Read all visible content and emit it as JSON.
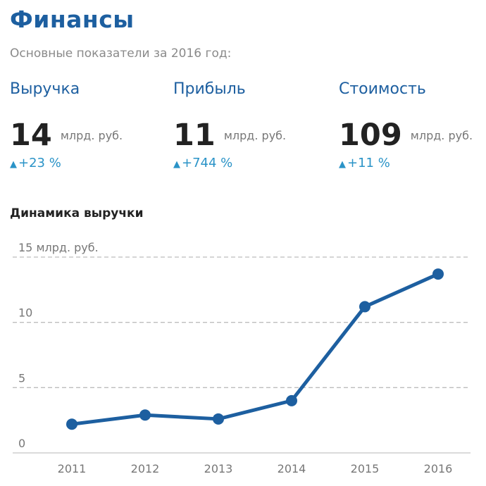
{
  "header": {
    "title": "Финансы",
    "subtitle": "Основные показатели за 2016 год:"
  },
  "metrics": [
    {
      "label": "Выручка",
      "value": "14",
      "unit": "млрд. руб.",
      "change": "+23 %"
    },
    {
      "label": "Прибыль",
      "value": "11",
      "unit": "млрд. руб.",
      "change": "+744 %"
    },
    {
      "label": "Стоимость",
      "value": "109",
      "unit": "млрд. руб.",
      "change": "+11 %"
    }
  ],
  "icons": {
    "change": "arrow-up-icon"
  },
  "colors": {
    "accent": "#1d5fa0",
    "change": "#2a93c7",
    "line": "#1d5fa0",
    "grid": "#bdbdbd"
  },
  "chart_data": {
    "type": "line",
    "title": "Динамика выручки",
    "categories": [
      "2011",
      "2012",
      "2013",
      "2014",
      "2015",
      "2016"
    ],
    "series": [
      {
        "values": [
          2.2,
          2.9,
          2.6,
          4.0,
          11.2,
          13.7
        ]
      }
    ],
    "y_ticks": [
      {
        "value": 0,
        "label": "0"
      },
      {
        "value": 5,
        "label": "5"
      },
      {
        "value": 10,
        "label": "10"
      },
      {
        "value": 15,
        "label": "15 млрд. руб."
      }
    ],
    "ylim": [
      0,
      15
    ],
    "grid": true,
    "xlabel": "",
    "ylabel": ""
  }
}
